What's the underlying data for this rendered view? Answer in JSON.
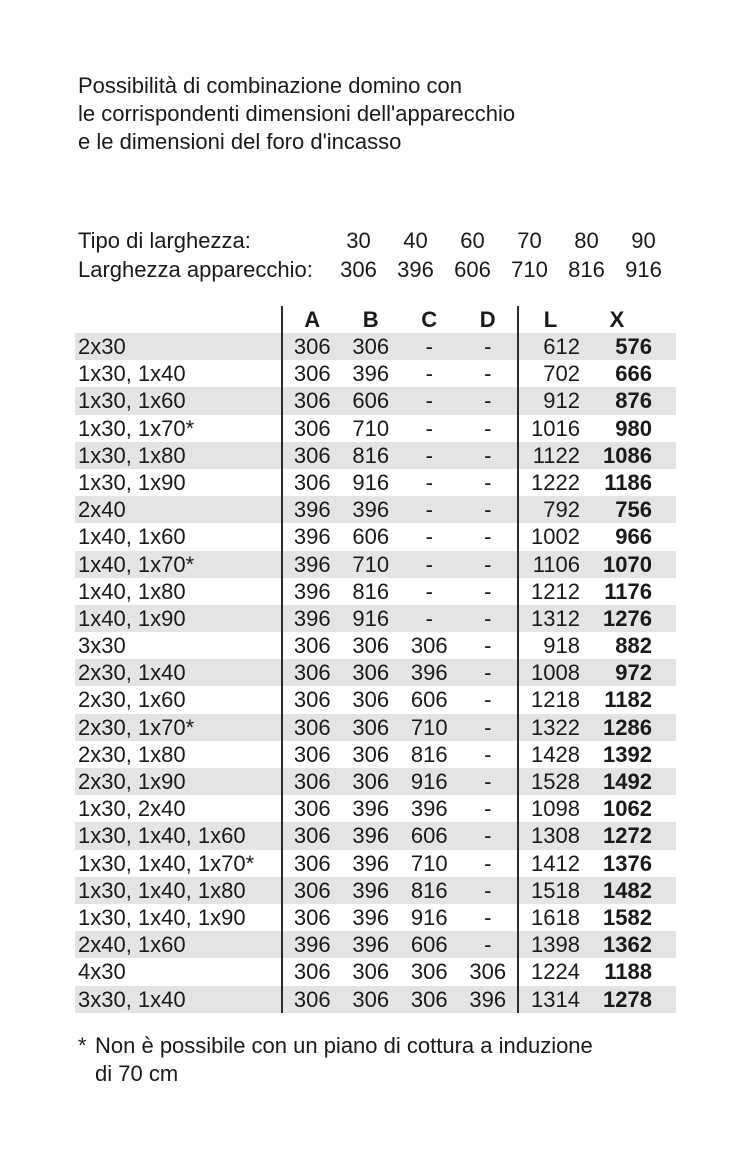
{
  "colors": {
    "stripe": "#e4e4e4",
    "rule": "#2b2b2b",
    "text": "#1a1a1a",
    "background": "#ffffff"
  },
  "title_lines": {
    "line1": "Possibilità di combinazione domino con",
    "line2": "le corrispondenti dimensioni dell'apparecchio",
    "line3": "e le dimensioni del foro d'incasso"
  },
  "width_spec": {
    "rows": [
      {
        "label": "Tipo di larghezza:",
        "values": [
          "30",
          "40",
          "60",
          "70",
          "80",
          "90"
        ]
      },
      {
        "label": "Larghezza apparecchio:",
        "values": [
          "306",
          "396",
          "606",
          "710",
          "816",
          "916"
        ]
      }
    ]
  },
  "table": {
    "columns": [
      "A",
      "B",
      "C",
      "D",
      "L",
      "X"
    ],
    "rows": [
      [
        "2x30",
        "306",
        "306",
        "-",
        "-",
        "612",
        "576"
      ],
      [
        "1x30, 1x40",
        "306",
        "396",
        "-",
        "-",
        "702",
        "666"
      ],
      [
        "1x30, 1x60",
        "306",
        "606",
        "-",
        "-",
        "912",
        "876"
      ],
      [
        "1x30, 1x70*",
        "306",
        "710",
        "-",
        "-",
        "1016",
        "980"
      ],
      [
        "1x30, 1x80",
        "306",
        "816",
        "-",
        "-",
        "1122",
        "1086"
      ],
      [
        "1x30, 1x90",
        "306",
        "916",
        "-",
        "-",
        "1222",
        "1186"
      ],
      [
        "2x40",
        "396",
        "396",
        "-",
        "-",
        "792",
        "756"
      ],
      [
        "1x40, 1x60",
        "396",
        "606",
        "-",
        "-",
        "1002",
        "966"
      ],
      [
        "1x40, 1x70*",
        "396",
        "710",
        "-",
        "-",
        "1106",
        "1070"
      ],
      [
        "1x40, 1x80",
        "396",
        "816",
        "-",
        "-",
        "1212",
        "1176"
      ],
      [
        "1x40, 1x90",
        "396",
        "916",
        "-",
        "-",
        "1312",
        "1276"
      ],
      [
        "3x30",
        "306",
        "306",
        "306",
        "-",
        "918",
        "882"
      ],
      [
        "2x30, 1x40",
        "306",
        "306",
        "396",
        "-",
        "1008",
        "972"
      ],
      [
        "2x30, 1x60",
        "306",
        "306",
        "606",
        "-",
        "1218",
        "1182"
      ],
      [
        "2x30, 1x70*",
        "306",
        "306",
        "710",
        "-",
        "1322",
        "1286"
      ],
      [
        "2x30, 1x80",
        "306",
        "306",
        "816",
        "-",
        "1428",
        "1392"
      ],
      [
        "2x30, 1x90",
        "306",
        "306",
        "916",
        "-",
        "1528",
        "1492"
      ],
      [
        "1x30, 2x40",
        "306",
        "396",
        "396",
        "-",
        "1098",
        "1062"
      ],
      [
        "1x30, 1x40, 1x60",
        "306",
        "396",
        "606",
        "-",
        "1308",
        "1272"
      ],
      [
        "1x30, 1x40, 1x70*",
        "306",
        "396",
        "710",
        "-",
        "1412",
        "1376"
      ],
      [
        "1x30, 1x40, 1x80",
        "306",
        "396",
        "816",
        "-",
        "1518",
        "1482"
      ],
      [
        "1x30, 1x40, 1x90",
        "306",
        "396",
        "916",
        "-",
        "1618",
        "1582"
      ],
      [
        "2x40, 1x60",
        "396",
        "396",
        "606",
        "-",
        "1398",
        "1362"
      ],
      [
        "4x30",
        "306",
        "306",
        "306",
        "306",
        "1224",
        "1188"
      ],
      [
        "3x30, 1x40",
        "306",
        "306",
        "306",
        "396",
        "1314",
        "1278"
      ]
    ]
  },
  "footnote": {
    "marker": "*",
    "line1": "Non è possibile con un piano di cottura a induzione",
    "line2": "di 70 cm"
  }
}
